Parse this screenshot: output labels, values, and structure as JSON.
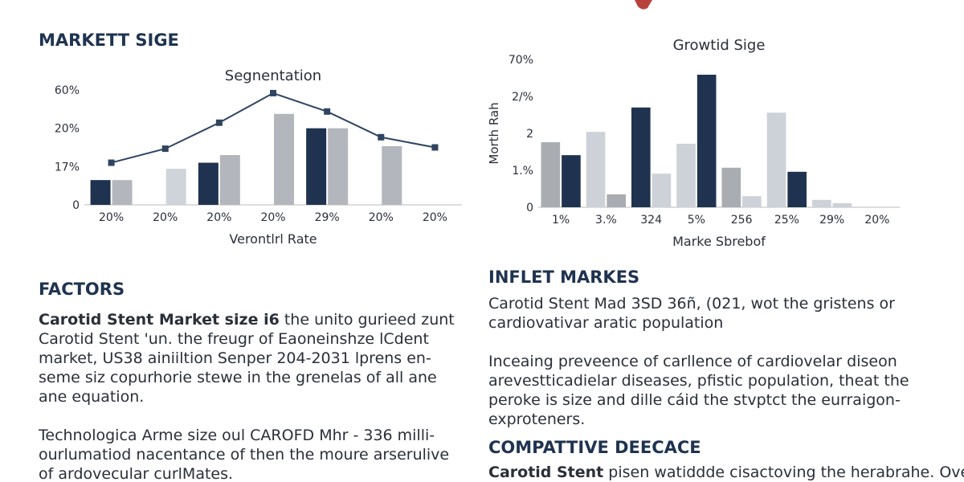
{
  "header": {
    "title": "MARKETT SIGE"
  },
  "chart_data": [
    {
      "type": "bar-line",
      "title": "Segnentation",
      "x_label": "Verontlrl Rate",
      "categories": [
        "20%",
        "20%",
        "20%",
        "20%",
        "29%",
        "20%",
        "20%"
      ],
      "series": [
        {
          "color": "#1f3350",
          "values": [
            11,
            null,
            17.3,
            null,
            20,
            null,
            null
          ]
        },
        {
          "color": "#b3b6bc",
          "colors": [
            "#b3b6bc",
            "#cfd3da",
            "#b3b6bc",
            "#b3b6bc",
            "#b3b6bc",
            "#b3b6bc",
            "#b3b6bc"
          ],
          "values": [
            11,
            16,
            17.9,
            35,
            20,
            18.6,
            null
          ]
        }
      ],
      "line": {
        "color": "#2e4461",
        "values": [
          17.3,
          18.4,
          25.8,
          56.7,
          37.5,
          19.3,
          18.5
        ]
      },
      "ylim": [
        0,
        60
      ],
      "yticks": [
        0,
        {
          "value": 17,
          "label": "17%"
        },
        {
          "value": 20,
          "label": "20%"
        },
        {
          "value": 60,
          "label": "60%"
        }
      ]
    },
    {
      "type": "bar",
      "title": "Growtid Sige",
      "x_label": "Marke Sbrebof",
      "y_label": "Morth Rah",
      "categories": [
        "1%",
        "3.%",
        "324",
        "5%",
        "256",
        "25%",
        "29%",
        "20%"
      ],
      "series": [
        {
          "color": "#a9acb1",
          "colors": [
            "#a9acb1",
            "#cdd1d8",
            "#1f3350",
            "#cdd1d8",
            "#a9acb1",
            "#cdd1d8",
            "#cdd1d8"
          ],
          "values": [
            1.76,
            2.02,
            2.35,
            1.72,
            1.07,
            2.28,
            0.2,
            null
          ]
        },
        {
          "color": "#1f3350",
          "colors": [
            "#1f3350",
            "#a9acb1",
            "#cdd1d8",
            "#1f3350",
            "#cdd1d8",
            "#1f3350",
            "#cdd1d8"
          ],
          "values": [
            1.41,
            0.35,
            0.91,
            42.1,
            0.3,
            0.96,
            0.11,
            null
          ]
        }
      ],
      "ylim": [
        0,
        70
      ],
      "yticks": [
        0,
        {
          "value": 1,
          "label": "1.%"
        },
        2,
        {
          "value": 2.5,
          "label": "2/%"
        },
        {
          "value": 70,
          "label": "70%"
        }
      ]
    }
  ],
  "left": {
    "heading": "FACTORS",
    "paragraphs": [
      {
        "lead": "Carotid Stent Market size i6",
        "lines": [
          " the unito gurieed zunt",
          "Carotid Stent 'un. the freugr of Eaoneinshze lCdent",
          "market, US38 ainiiltion Senper 204-2031 lprens en-",
          "seme siz copurhorie stewe in the grenelas of all ane",
          "ane equation."
        ]
      },
      {
        "lines": [
          "Technologica Arme size oul CAROFD Mhr - 336 milli-",
          "ourlumatiod nacentance of then the moure arserulive",
          "of ardovecular curlMates."
        ]
      }
    ]
  },
  "right": {
    "heading": "INFLET MARKES",
    "paragraphs": [
      {
        "lines": [
          "Carotid Stent Mad 3SD 36ñ, (021, wot the gristens or",
          "cardiovativar aratic population"
        ]
      },
      {
        "lines": [
          "Inceaing preveence of carllence of cardiovelar diseon",
          "arevestticadielar diseases, pfistic population, theat the",
          "peroke is size and dille cáid the stvptct the eurraigon-",
          "exproteners."
        ]
      }
    ],
    "heading2": "COMPATTIVE DEECACE",
    "paragraphs2": [
      {
        "lead": "Carotid Stent",
        "lines": [
          " pisen watiddde cisactoving the herabrahe. Ove"
        ]
      }
    ]
  }
}
